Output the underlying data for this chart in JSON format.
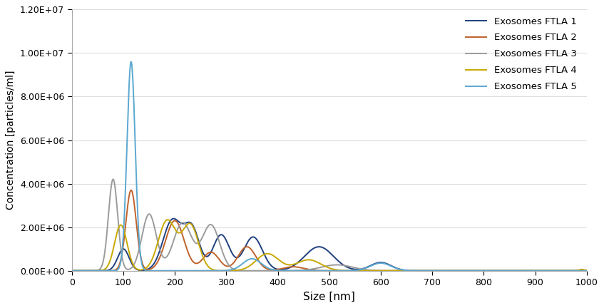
{
  "xlabel": "Size [nm]",
  "ylabel": "Concentration [particles/ml]",
  "xlim": [
    0,
    1000
  ],
  "ylim": [
    0,
    12000000.0
  ],
  "yticks": [
    0,
    2000000.0,
    4000000.0,
    6000000.0,
    8000000.0,
    10000000.0,
    12000000.0
  ],
  "xticks": [
    0,
    100,
    200,
    300,
    400,
    500,
    600,
    700,
    800,
    900,
    1000
  ],
  "legend_labels": [
    "Exosomes FTLA 1",
    "Exosomes FTLA 2",
    "Exosomes FTLA 3",
    "Exosomes FTLA 4",
    "Exosomes FTLA 5"
  ],
  "colors": [
    "#1f3f7f",
    "#c0622a",
    "#9b9b9b",
    "#c8a800",
    "#5ba8d0"
  ],
  "linewidth": 1.4,
  "background_color": "#ffffff",
  "series1_peaks": [
    [
      100,
      11,
      1000000.0
    ],
    [
      195,
      18,
      2300000.0
    ],
    [
      233,
      15,
      1900000.0
    ],
    [
      290,
      16,
      1650000.0
    ],
    [
      352,
      18,
      1550000.0
    ],
    [
      480,
      28,
      1100000.0
    ],
    [
      600,
      20,
      380000.0
    ]
  ],
  "series2_peaks": [
    [
      115,
      10,
      3700000.0
    ],
    [
      200,
      18,
      2300000.0
    ],
    [
      270,
      16,
      850000.0
    ],
    [
      340,
      17,
      1100000.0
    ],
    [
      430,
      20,
      180000.0
    ]
  ],
  "series3_peaks": [
    [
      80,
      9,
      4200000.0
    ],
    [
      150,
      14,
      2600000.0
    ],
    [
      215,
      18,
      2200000.0
    ],
    [
      270,
      17,
      2100000.0
    ],
    [
      515,
      30,
      270000.0
    ],
    [
      990,
      5,
      40000.0
    ]
  ],
  "series4_peaks": [
    [
      95,
      12,
      2100000.0
    ],
    [
      185,
      17,
      2300000.0
    ],
    [
      230,
      16,
      2100000.0
    ],
    [
      380,
      22,
      780000.0
    ],
    [
      460,
      24,
      500000.0
    ],
    [
      990,
      5,
      60000.0
    ]
  ],
  "series5_peaks": [
    [
      115,
      8,
      9600000.0
    ],
    [
      350,
      18,
      550000.0
    ],
    [
      600,
      20,
      350000.0
    ]
  ]
}
